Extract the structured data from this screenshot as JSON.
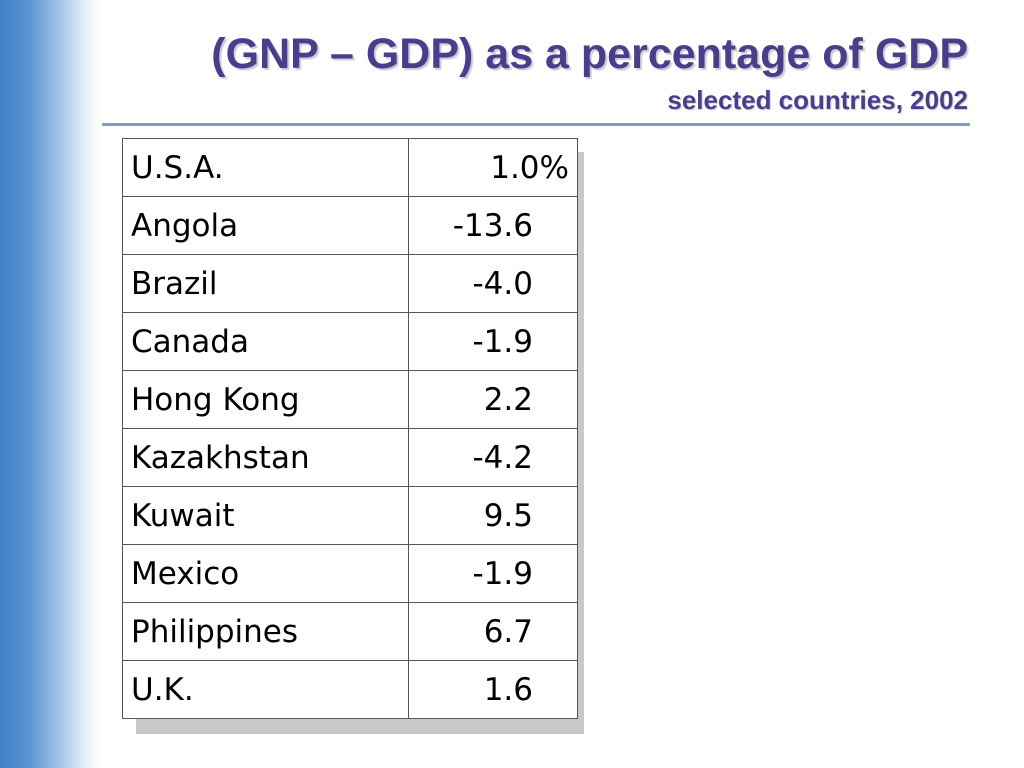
{
  "slide": {
    "title": "(GNP – GDP) as a percentage of GDP",
    "subtitle": "selected countries, 2002",
    "accent_color": "#4a3d8c",
    "rule_color": "#7f9bd0",
    "band_color": "#3f7fc6"
  },
  "table": {
    "rows": [
      {
        "country": "U.S.A.",
        "value": "1.0%"
      },
      {
        "country": "Angola",
        "value": "-13.6"
      },
      {
        "country": "Brazil",
        "value": "-4.0"
      },
      {
        "country": "Canada",
        "value": "-1.9"
      },
      {
        "country": "Hong Kong",
        "value": "2.2"
      },
      {
        "country": "Kazakhstan",
        "value": "-4.2"
      },
      {
        "country": "Kuwait",
        "value": "9.5"
      },
      {
        "country": "Mexico",
        "value": "-1.9"
      },
      {
        "country": "Philippines",
        "value": "6.7"
      },
      {
        "country": "U.K.",
        "value": "1.6"
      }
    ]
  }
}
